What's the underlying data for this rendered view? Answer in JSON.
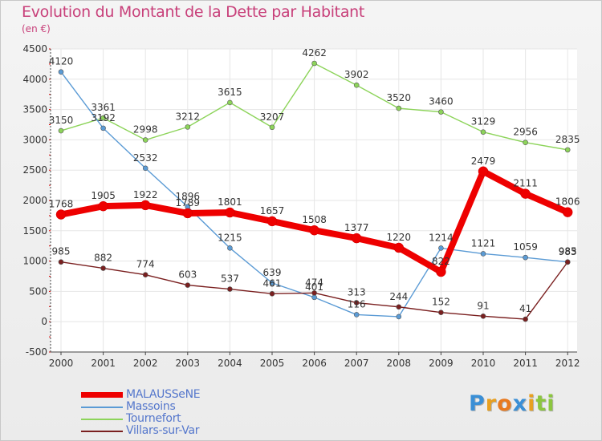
{
  "chart_data": {
    "type": "line",
    "title": "Evolution du Montant de la Dette par Habitant",
    "ylabel": "(en €)",
    "xlabel": "",
    "ylim": [
      -500,
      4500
    ],
    "yticks": [
      -500,
      0,
      500,
      1000,
      1500,
      2000,
      2500,
      3000,
      3500,
      4000,
      4500
    ],
    "grid": true,
    "legend_position": "bottom-left",
    "categories": [
      "2000",
      "2001",
      "2002",
      "2003",
      "2004",
      "2005",
      "2006",
      "2007",
      "2008",
      "2009",
      "2010",
      "2011",
      "2012"
    ],
    "series": [
      {
        "name": "MALAUSSeNE",
        "color": "#ee0000",
        "values": [
          1768,
          1905,
          1922,
          1789,
          1801,
          1657,
          1508,
          1377,
          1220,
          822,
          2479,
          2111,
          1806
        ]
      },
      {
        "name": "Massoins",
        "color": "#5b9bd5",
        "values": [
          4120,
          3192,
          2532,
          1896,
          1215,
          639,
          401,
          116,
          83,
          1214,
          1121,
          1059,
          985
        ]
      },
      {
        "name": "Tournefort",
        "color": "#8dd45a",
        "values": [
          3150,
          3361,
          2998,
          3212,
          3615,
          3207,
          4262,
          3902,
          3520,
          3460,
          3129,
          2956,
          2835
        ]
      },
      {
        "name": "Villars-sur-Var",
        "color": "#7a1f1f",
        "values": [
          985,
          882,
          774,
          603,
          537,
          461,
          474,
          313,
          244,
          152,
          91,
          41,
          983
        ]
      }
    ],
    "labels_shown": [
      [
        "1768",
        "1905",
        "1922",
        "1789",
        "1801",
        "1657",
        "1508",
        "1377",
        "1220",
        "822",
        "2479",
        "2111",
        "1806"
      ],
      [
        "4120",
        "3192",
        "2532",
        "1896",
        "1215",
        "639",
        "401",
        "116",
        "",
        "1214",
        "1121",
        "1059",
        "985"
      ],
      [
        "3150",
        "3361",
        "2998",
        "3212",
        "3615",
        "3207",
        "4262",
        "3902",
        "3520",
        "3460",
        "3129",
        "2956",
        "2835"
      ],
      [
        "985",
        "882",
        "774",
        "603",
        "537",
        "461",
        "474",
        "313",
        "244",
        "152",
        "91",
        "41",
        "983"
      ]
    ]
  },
  "logo": {
    "letters": [
      "P",
      "r",
      "o",
      "x",
      "i",
      "t",
      "i"
    ],
    "colors": [
      "#3a8fd6",
      "#e8a020",
      "#e87a20",
      "#3a8fd6",
      "#e8a020",
      "#8cc63f",
      "#8cc63f"
    ]
  }
}
